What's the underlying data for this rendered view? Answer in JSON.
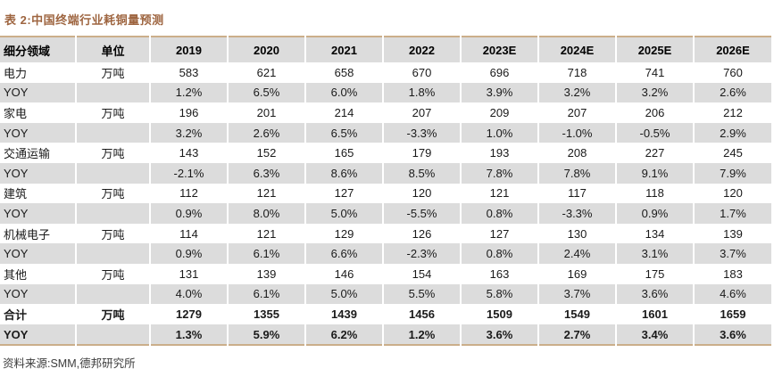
{
  "title": "表 2:中国终端行业耗铜量预测",
  "source_note": "资料来源:SMM,德邦研究所",
  "colors": {
    "title_brown": "#9e6540",
    "rule_tan": "#cbae8a",
    "row_shade": "#dcdcdc",
    "text": "#1a1a1a"
  },
  "table": {
    "headers": [
      "细分领域",
      "单位",
      "2019",
      "2020",
      "2021",
      "2022",
      "2023E",
      "2024E",
      "2025E",
      "2026E"
    ],
    "rows": [
      {
        "label": "电力",
        "unit": "万吨",
        "shaded": false,
        "bold": false,
        "values": [
          "583",
          "621",
          "658",
          "670",
          "696",
          "718",
          "741",
          "760"
        ]
      },
      {
        "label": "YOY",
        "unit": "",
        "shaded": true,
        "bold": false,
        "values": [
          "1.2%",
          "6.5%",
          "6.0%",
          "1.8%",
          "3.9%",
          "3.2%",
          "3.2%",
          "2.6%"
        ]
      },
      {
        "label": "家电",
        "unit": "万吨",
        "shaded": false,
        "bold": false,
        "values": [
          "196",
          "201",
          "214",
          "207",
          "209",
          "207",
          "206",
          "212"
        ]
      },
      {
        "label": "YOY",
        "unit": "",
        "shaded": true,
        "bold": false,
        "values": [
          "3.2%",
          "2.6%",
          "6.5%",
          "-3.3%",
          "1.0%",
          "-1.0%",
          "-0.5%",
          "2.9%"
        ]
      },
      {
        "label": "交通运输",
        "unit": "万吨",
        "shaded": false,
        "bold": false,
        "values": [
          "143",
          "152",
          "165",
          "179",
          "193",
          "208",
          "227",
          "245"
        ]
      },
      {
        "label": "YOY",
        "unit": "",
        "shaded": true,
        "bold": false,
        "values": [
          "-2.1%",
          "6.3%",
          "8.6%",
          "8.5%",
          "7.8%",
          "7.8%",
          "9.1%",
          "7.9%"
        ]
      },
      {
        "label": "建筑",
        "unit": "万吨",
        "shaded": false,
        "bold": false,
        "values": [
          "112",
          "121",
          "127",
          "120",
          "121",
          "117",
          "118",
          "120"
        ]
      },
      {
        "label": "YOY",
        "unit": "",
        "shaded": true,
        "bold": false,
        "values": [
          "0.9%",
          "8.0%",
          "5.0%",
          "-5.5%",
          "0.8%",
          "-3.3%",
          "0.9%",
          "1.7%"
        ]
      },
      {
        "label": "机械电子",
        "unit": "万吨",
        "shaded": false,
        "bold": false,
        "values": [
          "114",
          "121",
          "129",
          "126",
          "127",
          "130",
          "134",
          "139"
        ]
      },
      {
        "label": "YOY",
        "unit": "",
        "shaded": true,
        "bold": false,
        "values": [
          "0.9%",
          "6.1%",
          "6.6%",
          "-2.3%",
          "0.8%",
          "2.4%",
          "3.1%",
          "3.7%"
        ]
      },
      {
        "label": "其他",
        "unit": "万吨",
        "shaded": false,
        "bold": false,
        "values": [
          "131",
          "139",
          "146",
          "154",
          "163",
          "169",
          "175",
          "183"
        ]
      },
      {
        "label": "YOY",
        "unit": "",
        "shaded": true,
        "bold": false,
        "values": [
          "4.0%",
          "6.1%",
          "5.0%",
          "5.5%",
          "5.8%",
          "3.7%",
          "3.6%",
          "4.6%"
        ]
      },
      {
        "label": "合计",
        "unit": "万吨",
        "shaded": false,
        "bold": true,
        "values": [
          "1279",
          "1355",
          "1439",
          "1456",
          "1509",
          "1549",
          "1601",
          "1659"
        ]
      },
      {
        "label": "YOY",
        "unit": "",
        "shaded": true,
        "bold": true,
        "values": [
          "1.3%",
          "5.9%",
          "6.2%",
          "1.2%",
          "3.6%",
          "2.7%",
          "3.4%",
          "3.6%"
        ]
      }
    ]
  }
}
